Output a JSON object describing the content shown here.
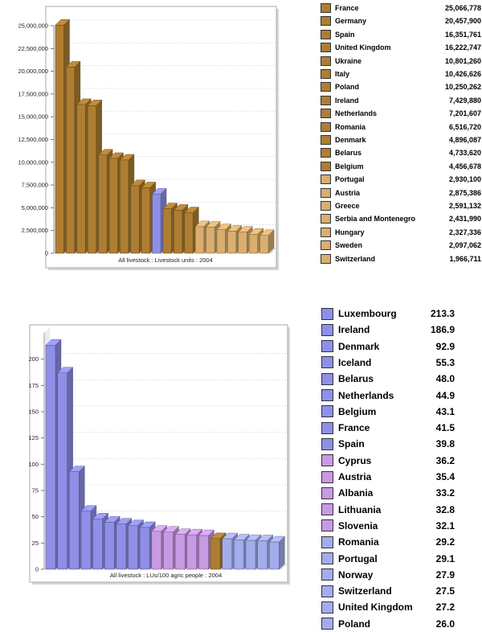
{
  "colors": {
    "brown": "#ad7e32",
    "lightbrown": "#d9ae6f",
    "blue": "#8f8fe8",
    "violet": "#c89ae3",
    "lightblue": "#a3acec"
  },
  "chart_data": [
    {
      "type": "bar",
      "xlabel": "All livestock : Livestock units : 2004",
      "ylim": [
        0,
        25000000
      ],
      "yticks": [
        "0",
        "2,500,000",
        "5,000,000",
        "7,500,000",
        "10,000,000",
        "12,500,000",
        "15,000,000",
        "17,500,000",
        "20,000,000",
        "22,500,000",
        "25,000,000"
      ],
      "grid": true,
      "legend_position": "right",
      "categories": [
        "France",
        "Germany",
        "Spain",
        "United Kingdom",
        "Ukraine",
        "Italy",
        "Poland",
        "Ireland",
        "Netherlands",
        "Romania",
        "Denmark",
        "Belarus",
        "Belgium",
        "Portugal",
        "Austria",
        "Greece",
        "Serbia and Montenegro",
        "Hungary",
        "Sweden",
        "Switzerland"
      ],
      "values": [
        25066778,
        20457900,
        16351761,
        16222747,
        10801260,
        10426626,
        10250262,
        7429880,
        7201607,
        6516720,
        4896087,
        4733620,
        4456678,
        2930100,
        2875386,
        2591132,
        2431990,
        2327336,
        2097062,
        1966711
      ],
      "value_labels": [
        "25,066,778",
        "20,457,900",
        "16,351,761",
        "16,222,747",
        "10,801,260",
        "10,426,626",
        "10,250,262",
        "7,429,880",
        "7,201,607",
        "6,516,720",
        "4,896,087",
        "4,733,620",
        "4,456,678",
        "2,930,100",
        "2,875,386",
        "2,591,132",
        "2,431,990",
        "2,327,336",
        "2,097,062",
        "1,966,711"
      ],
      "bar_values": [
        25066778,
        20457900,
        16351761,
        16222747,
        10801260,
        10426626,
        10250262,
        7429880,
        7201607,
        6516720,
        4896087,
        4733620,
        4456678,
        2930100,
        2875386,
        2591132,
        2431990,
        2327336,
        2097062,
        1966711
      ],
      "bar_colors": [
        "brown",
        "brown",
        "brown",
        "brown",
        "brown",
        "brown",
        "brown",
        "brown",
        "brown",
        "blue",
        "brown",
        "brown",
        "brown",
        "lightbrown",
        "lightbrown",
        "lightbrown",
        "lightbrown",
        "lightbrown",
        "lightbrown",
        "lightbrown"
      ],
      "legend_colors": [
        "brown",
        "brown",
        "brown",
        "brown",
        "brown",
        "brown",
        "brown",
        "brown",
        "brown",
        "brown",
        "brown",
        "brown",
        "brown",
        "lightbrown",
        "lightbrown",
        "lightbrown",
        "lightbrown",
        "lightbrown",
        "lightbrown",
        "lightbrown"
      ]
    },
    {
      "type": "bar",
      "xlabel": "All livestock : LUs/100 agric people : 2004",
      "ylim": [
        0,
        225
      ],
      "yticks": [
        "0",
        "25",
        "50",
        "75",
        "100",
        "125",
        "150",
        "175",
        "200"
      ],
      "grid": true,
      "legend_position": "right",
      "categories": [
        "Luxembourg",
        "Ireland",
        "Denmark",
        "Iceland",
        "Belarus",
        "Netherlands",
        "Belgium",
        "France",
        "Spain",
        "Cyprus",
        "Austria",
        "Albania",
        "Lithuania",
        "Slovenia",
        "Romania",
        "Portugal",
        "Norway",
        "Switzerland",
        "United Kingdom",
        "Poland"
      ],
      "values": [
        213.3,
        186.9,
        92.9,
        55.3,
        48.0,
        44.9,
        43.1,
        41.5,
        39.8,
        36.2,
        35.4,
        33.2,
        32.8,
        32.1,
        29.2,
        29.1,
        27.9,
        27.5,
        27.2,
        26.0
      ],
      "value_labels": [
        "213.3",
        "186.9",
        "92.9",
        "55.3",
        "48.0",
        "44.9",
        "43.1",
        "41.5",
        "39.8",
        "36.2",
        "35.4",
        "33.2",
        "32.8",
        "32.1",
        "29.2",
        "29.1",
        "27.9",
        "27.5",
        "27.2",
        "26.0"
      ],
      "bar_values": [
        213.3,
        186.9,
        92.9,
        55.3,
        48.0,
        44.9,
        43.1,
        41.5,
        39.8,
        36.2,
        35.4,
        33.2,
        32.8,
        32.1,
        29.2,
        29.1,
        27.9,
        27.5,
        27.2,
        26.0
      ],
      "bar_colors": [
        "blue",
        "blue",
        "blue",
        "blue",
        "blue",
        "blue",
        "blue",
        "blue",
        "blue",
        "violet",
        "violet",
        "violet",
        "violet",
        "violet",
        "brown",
        "lightblue",
        "lightblue",
        "lightblue",
        "lightblue",
        "lightblue"
      ],
      "legend_colors": [
        "blue",
        "blue",
        "blue",
        "blue",
        "blue",
        "blue",
        "blue",
        "blue",
        "blue",
        "violet",
        "violet",
        "violet",
        "violet",
        "violet",
        "lightblue",
        "lightblue",
        "lightblue",
        "lightblue",
        "lightblue",
        "lightblue"
      ]
    }
  ]
}
